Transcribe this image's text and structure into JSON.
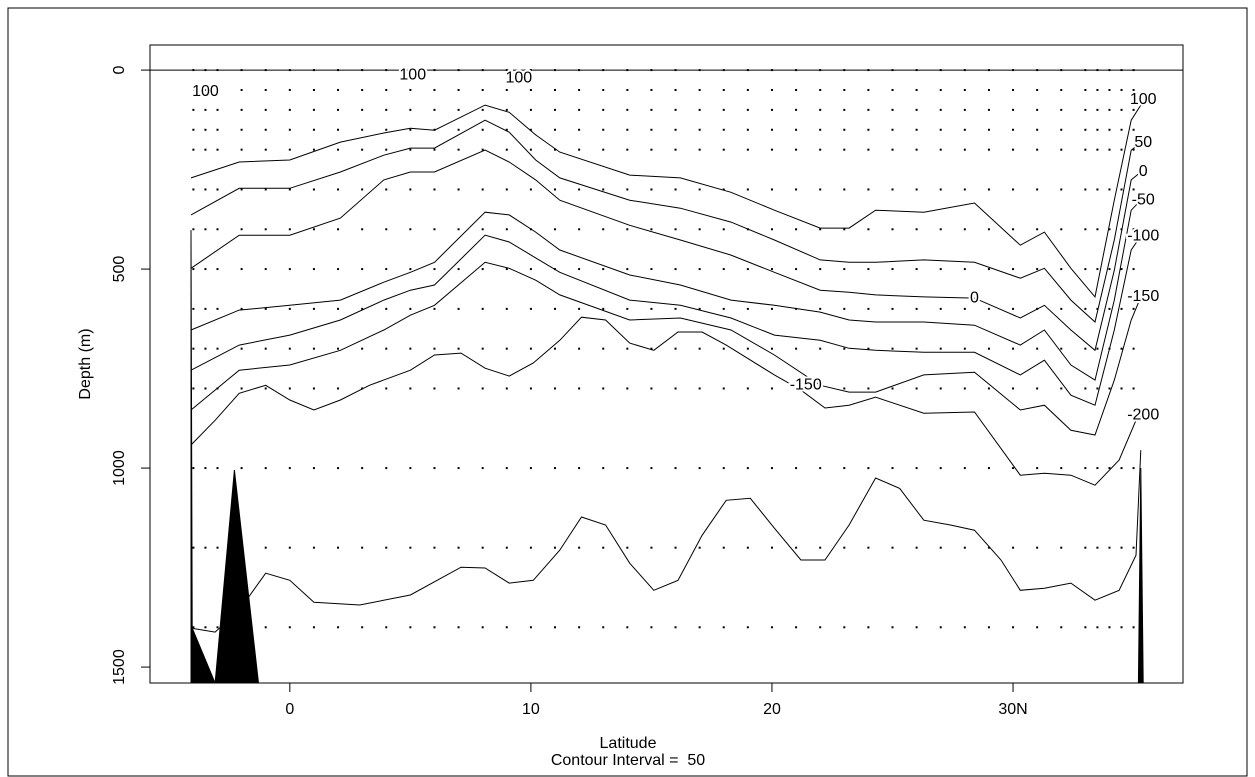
{
  "chart_data": {
    "type": "contour",
    "x_label": "Latitude",
    "subtitle": "Contour Interval =  50",
    "y_label": "Depth (m)",
    "xlim": [
      -5.8,
      37.05
    ],
    "ylim": [
      1540,
      -63
    ],
    "xticks": [
      0,
      10,
      20,
      {
        "value": 30,
        "label": "30N"
      }
    ],
    "yticks": [
      0,
      500,
      1000,
      1500
    ],
    "surface_line": 0,
    "line_color": "#000000",
    "contours": [
      {
        "x": [
          -4.1,
          -2.1,
          0,
          2.1,
          3.9,
          5,
          6,
          8.1,
          9.1,
          10.2,
          11.2,
          14.1,
          16.2,
          18.3,
          20.1,
          22,
          23.2,
          24.3,
          26.3,
          28.4,
          30.3,
          31.3,
          32.4,
          33.4,
          34.2,
          34.9,
          35.3
        ],
        "y": [
          271,
          231,
          226,
          181,
          158,
          146,
          151,
          88,
          106,
          163,
          206,
          264,
          271,
          307,
          352,
          397,
          397,
          352,
          357,
          334,
          440,
          407,
          498,
          570,
          327,
          126,
          88
        ]
      },
      {
        "x": [
          -4.1,
          -2.1,
          0,
          2.1,
          3.9,
          5,
          6,
          8.1,
          9.1,
          10.2,
          11.2,
          14.1,
          16.2,
          18.3,
          20.1,
          22,
          23.2,
          24.3,
          26.3,
          28.4,
          30.3,
          31.3,
          32.4,
          33.4,
          34.2,
          34.9,
          35.3
        ],
        "y": [
          364,
          297,
          297,
          256,
          214,
          196,
          196,
          126,
          156,
          226,
          271,
          327,
          347,
          382,
          427,
          477,
          483,
          483,
          477,
          483,
          523,
          498,
          578,
          633,
          427,
          201,
          183
        ]
      },
      {
        "x": [
          -4.1,
          -2.1,
          0,
          2.1,
          3.9,
          5,
          6,
          8.1,
          9.1,
          10.2,
          11.2,
          14.1,
          16.2,
          18.3,
          20.1,
          22,
          23.2,
          24.3,
          26.3,
          28.4,
          30.3,
          31.3,
          32.4,
          33.4,
          34.2,
          34.9,
          35.3
        ],
        "y": [
          498,
          415,
          415,
          372,
          276,
          256,
          256,
          201,
          231,
          276,
          327,
          390,
          427,
          465,
          508,
          553,
          558,
          565,
          570,
          573,
          623,
          591,
          653,
          704,
          503,
          276,
          256
        ]
      },
      {
        "x": [
          -4.1,
          -2.1,
          0,
          2.1,
          3.9,
          5,
          6,
          8.1,
          9.1,
          10.2,
          11.2,
          14.1,
          16.2,
          18.3,
          20.1,
          22,
          23.2,
          24.3,
          26.3,
          28.4,
          30.3,
          31.3,
          32.4,
          33.4,
          34.2,
          34.9,
          35.3
        ],
        "y": [
          653,
          603,
          591,
          578,
          533,
          508,
          483,
          357,
          364,
          407,
          452,
          515,
          540,
          578,
          591,
          608,
          628,
          633,
          633,
          641,
          691,
          653,
          741,
          779,
          578,
          352,
          327
        ]
      },
      {
        "x": [
          -4.1,
          -2.1,
          0,
          2.1,
          3.9,
          5,
          6,
          8.1,
          9.1,
          10.2,
          11.2,
          14.1,
          16.2,
          18.3,
          20.1,
          22,
          23.2,
          24.3,
          26.3,
          28.4,
          30.3,
          31.3,
          32.4,
          33.4,
          34.2,
          34.9,
          35.3
        ],
        "y": [
          754,
          691,
          666,
          628,
          578,
          553,
          540,
          415,
          432,
          472,
          508,
          578,
          591,
          623,
          666,
          679,
          699,
          704,
          709,
          709,
          766,
          729,
          817,
          842,
          653,
          452,
          417
        ]
      },
      {
        "x": [
          -4.1,
          -2.1,
          0,
          2.1,
          3.9,
          5,
          6,
          8.1,
          9.1,
          10.2,
          11.2,
          14.1,
          16.2,
          18.3,
          20.1,
          22,
          23.2,
          24.3,
          26.3,
          28.4,
          30.3,
          31.3,
          32.4,
          33.4,
          34.2,
          34.9,
          35.3
        ],
        "y": [
          854,
          754,
          741,
          704,
          653,
          616,
          591,
          483,
          498,
          528,
          565,
          628,
          623,
          653,
          716,
          792,
          809,
          809,
          766,
          759,
          854,
          842,
          905,
          917,
          779,
          628,
          570
        ]
      },
      {
        "x": [
          -4.1,
          -3.1,
          -2.1,
          -1.0,
          0,
          1.0,
          2.1,
          3.3,
          5.0,
          6.0,
          7.1,
          8.1,
          9.1,
          10.1,
          11.2,
          12.1,
          13.1,
          14.1,
          15.1,
          16.1,
          17.1,
          18.1,
          20.1,
          21.2,
          22.2,
          23.2,
          24.3,
          26.3,
          28.4,
          30.3,
          31.3,
          32.4,
          33.4,
          34.4,
          35.1,
          35.3
        ],
        "y": [
          942,
          880,
          812,
          792,
          829,
          854,
          829,
          792,
          754,
          716,
          711,
          749,
          769,
          736,
          679,
          621,
          628,
          686,
          704,
          658,
          658,
          691,
          766,
          804,
          849,
          842,
          822,
          862,
          859,
          1018,
          1013,
          1018,
          1043,
          980,
          880,
          867
        ]
      },
      {
        "x": [
          -4.1,
          -3.1,
          -2.1,
          -1.0,
          0,
          1.0,
          2.9,
          5.0,
          7.1,
          8.1,
          9.1,
          10.1,
          11.2,
          12.1,
          13.1,
          14.1,
          15.1,
          16.1,
          17.1,
          18.1,
          19.1,
          20.1,
          21.2,
          22.2,
          23.2,
          24.3,
          25.3,
          26.3,
          27.4,
          28.4,
          29.5,
          30.3,
          31.3,
          32.4,
          33.4,
          34.4,
          35.1,
          35.3
        ],
        "y": [
          1402,
          1412,
          1357,
          1264,
          1282,
          1337,
          1344,
          1319,
          1249,
          1251,
          1289,
          1282,
          1206,
          1123,
          1143,
          1239,
          1307,
          1282,
          1169,
          1081,
          1076,
          1151,
          1231,
          1231,
          1143,
          1025,
          1051,
          1131,
          1143,
          1156,
          1231,
          1307,
          1302,
          1289,
          1332,
          1307,
          1219,
          955
        ]
      }
    ],
    "annotations": [
      {
        "text": "100",
        "x": -3.5,
        "y": 55
      },
      {
        "text": "100",
        "x": 5.1,
        "y": 13
      },
      {
        "text": "100",
        "x": 9.5,
        "y": 20
      },
      {
        "text": "100",
        "x": 35.4,
        "y": 75
      },
      {
        "text": "50",
        "x": 35.4,
        "y": 183
      },
      {
        "text": "0",
        "x": 35.4,
        "y": 256
      },
      {
        "text": "-50",
        "x": 35.4,
        "y": 327
      },
      {
        "text": "-100",
        "x": 35.4,
        "y": 417
      },
      {
        "text": "-150",
        "x": 35.4,
        "y": 570
      },
      {
        "text": "-200",
        "x": 35.4,
        "y": 867
      },
      {
        "text": "0",
        "x": 28.4,
        "y": 573
      },
      {
        "text": "-150",
        "x": 21.4,
        "y": 792
      }
    ],
    "stations": {
      "x": [
        -4,
        -3.5,
        -3,
        -2,
        -1,
        0,
        1,
        2,
        3,
        4,
        5,
        6,
        7,
        8,
        9,
        10,
        11,
        12,
        13,
        14,
        15,
        16,
        17,
        18,
        19,
        20,
        21,
        22,
        23,
        24,
        25,
        26,
        27,
        28,
        29,
        30,
        31,
        32,
        33,
        33.5,
        34,
        34.5,
        35
      ],
      "depths": [
        0,
        50,
        100,
        150,
        200,
        300,
        400,
        500,
        600,
        700,
        800,
        1000,
        1200,
        1400
      ]
    },
    "bathymetry": [
      {
        "x": [
          -4.1,
          -4.1,
          -4.05,
          -3.1
        ],
        "y": [
          1540,
          402,
          1402,
          1540
        ]
      },
      {
        "x": [
          -3.1,
          -2.3,
          -1.3
        ],
        "y": [
          1540,
          1005,
          1540
        ]
      },
      {
        "x": [
          35.2,
          35.3,
          35.4
        ],
        "y": [
          1540,
          1000,
          1540
        ]
      }
    ]
  }
}
